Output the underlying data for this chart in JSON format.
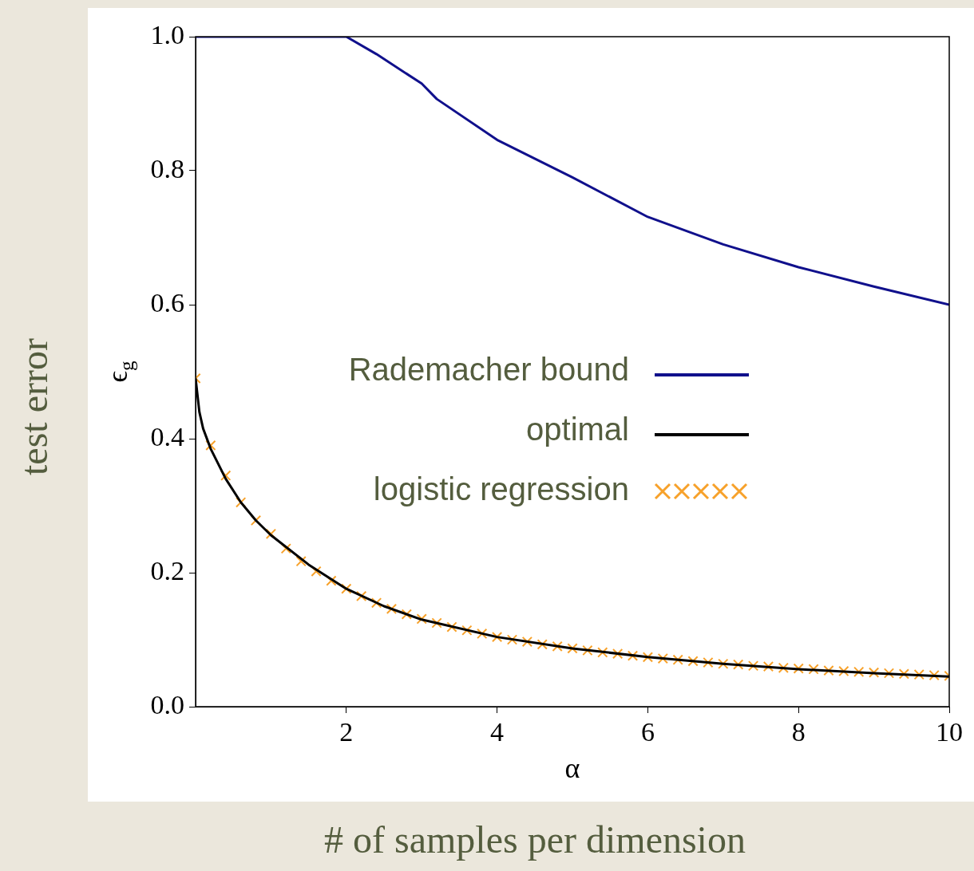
{
  "chart_data": {
    "type": "line",
    "xlabel": "α",
    "ylabel": "ϵ$_{g}$",
    "annotations": [
      "test error",
      "# of samples per dimension"
    ],
    "xlim": [
      0,
      10
    ],
    "xticks": [
      2,
      4,
      6,
      8,
      10
    ],
    "ylim": [
      0,
      1
    ],
    "yticks": [
      {
        "value": 0,
        "label": "0.0"
      },
      0.2,
      0.4,
      0.6,
      0.8,
      {
        "value": 1,
        "label": "1.0"
      }
    ],
    "grid": false,
    "legend": "center",
    "series": [
      {
        "name": "Rademacher bound",
        "color": "#10108c",
        "marker": "none",
        "x": [
          0,
          2,
          2.4,
          3,
          3.2,
          4,
          5,
          6,
          7,
          8,
          9,
          10
        ],
        "values": [
          1,
          1,
          0.974,
          0.93,
          0.907,
          0.846,
          0.79,
          0.731,
          0.69,
          0.656,
          0.627,
          0.6
        ]
      },
      {
        "name": "optimal",
        "color": "#000000",
        "marker": "none",
        "x": [
          0,
          0.05,
          0.1,
          0.2,
          0.4,
          0.6,
          0.8,
          1,
          1.5,
          2,
          2.5,
          3,
          4,
          5,
          6,
          7,
          8,
          9,
          10
        ],
        "values": [
          0.49,
          0.44,
          0.415,
          0.385,
          0.34,
          0.305,
          0.278,
          0.256,
          0.212,
          0.176,
          0.15,
          0.13,
          0.104,
          0.087,
          0.074,
          0.064,
          0.056,
          0.05,
          0.045
        ]
      },
      {
        "name": "logistic regression",
        "type": "scatter",
        "color": "#f7a12a",
        "marker": "cross",
        "x": [
          0,
          0.2,
          0.4,
          0.6,
          0.8,
          1,
          1.2,
          1.4,
          1.6,
          1.8,
          2,
          2.2,
          2.4,
          2.6,
          2.8,
          3,
          3.2,
          3.4,
          3.6,
          3.8,
          4,
          4.2,
          4.4,
          4.6,
          4.8,
          5,
          5.2,
          5.4,
          5.6,
          5.8,
          6,
          6.2,
          6.4,
          6.6,
          6.8,
          7,
          7.2,
          7.4,
          7.6,
          7.8,
          8,
          8.2,
          8.4,
          8.6,
          8.8,
          9,
          9.2,
          9.4,
          9.6,
          9.8,
          10
        ],
        "values": [
          0.49,
          0.39,
          0.345,
          0.305,
          0.278,
          0.258,
          0.236,
          0.217,
          0.202,
          0.188,
          0.176,
          0.165,
          0.155,
          0.146,
          0.138,
          0.131,
          0.125,
          0.119,
          0.114,
          0.109,
          0.104,
          0.1,
          0.097,
          0.093,
          0.09,
          0.087,
          0.084,
          0.081,
          0.079,
          0.076,
          0.074,
          0.072,
          0.07,
          0.068,
          0.066,
          0.064,
          0.063,
          0.061,
          0.06,
          0.058,
          0.057,
          0.056,
          0.054,
          0.053,
          0.052,
          0.051,
          0.05,
          0.049,
          0.048,
          0.047,
          0.046
        ]
      }
    ]
  }
}
